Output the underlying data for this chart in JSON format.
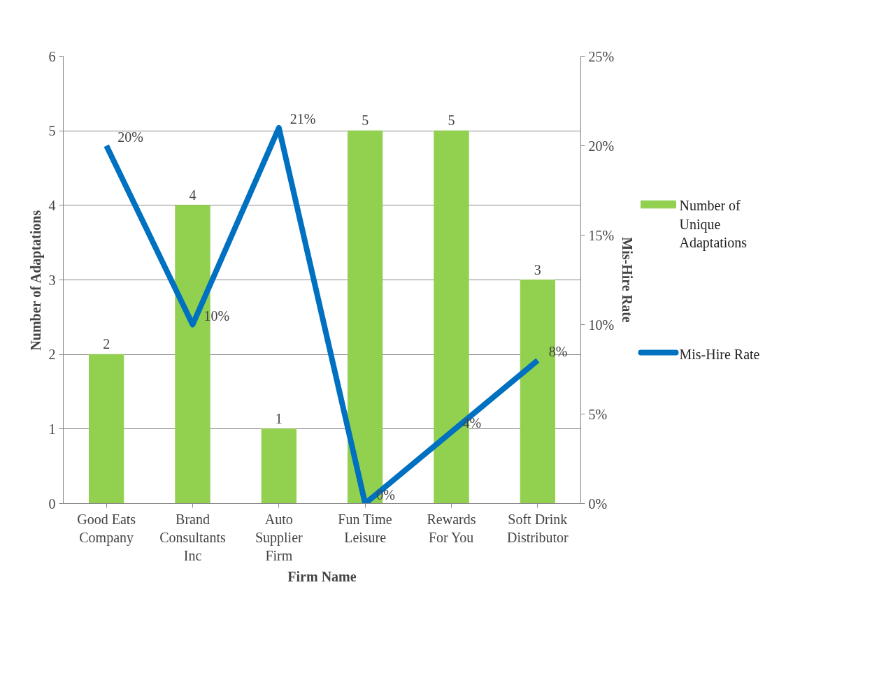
{
  "chart_data": {
    "type": "bar",
    "xlabel": "Firm Name",
    "ylabel": "Number of Adaptations",
    "y2label": "Mis-Hire Rate",
    "categories": [
      "Good Eats Company",
      "Brand Consultants Inc",
      "Auto Supplier Firm",
      "Fun Time Leisure",
      "Rewards For You",
      "Soft Drink Distributor"
    ],
    "series": [
      {
        "name": "Number of Unique Adaptations",
        "color": "#92d050",
        "values": [
          2,
          4,
          1,
          5,
          5,
          3
        ]
      },
      {
        "name": "Mis-Hire Rate",
        "type": "line",
        "axis": "y2",
        "color": "#0070c0",
        "values": [
          20,
          10,
          21,
          0,
          4,
          8
        ],
        "value_labels": [
          "20%",
          "10%",
          "21%",
          "0%",
          "4%",
          "8%"
        ]
      }
    ],
    "ylim": [
      0,
      6
    ],
    "yticks": [
      0,
      1,
      2,
      3,
      4,
      5,
      6
    ],
    "y2lim": [
      0,
      25
    ],
    "y2ticks": [
      {
        "value": 0,
        "label": "0%"
      },
      {
        "value": 5,
        "label": "5%"
      },
      {
        "value": 10,
        "label": "10%"
      },
      {
        "value": 15,
        "label": "15%"
      },
      {
        "value": 20,
        "label": "20%"
      },
      {
        "value": 25,
        "label": "25%"
      }
    ],
    "data_labels": true,
    "grid": "y",
    "legend": "right"
  }
}
